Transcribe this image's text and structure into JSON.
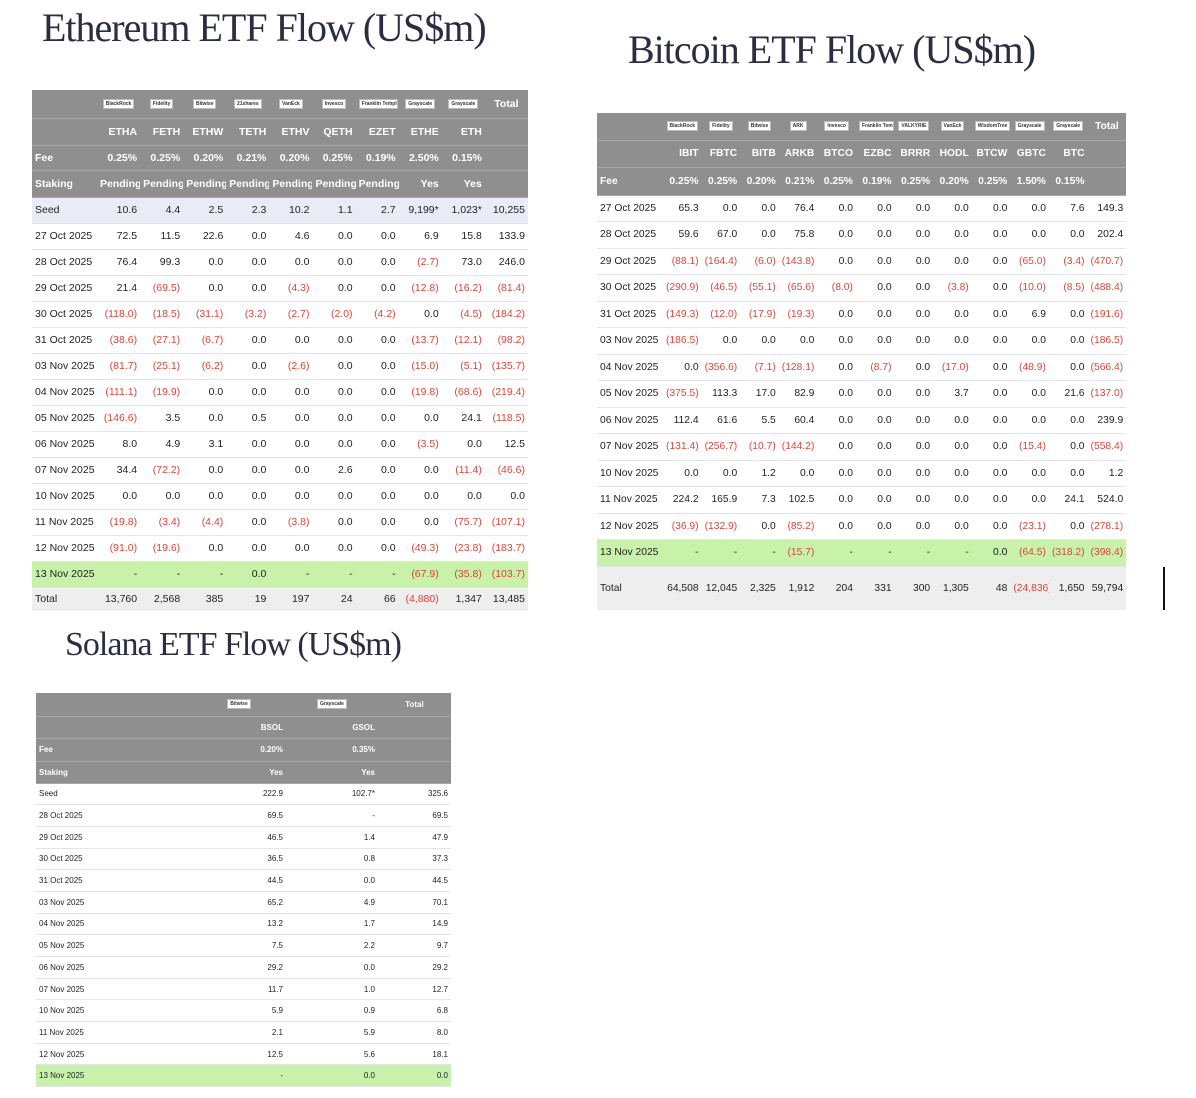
{
  "ethereum": {
    "title": "Ethereum ETF Flow (US$m)",
    "issuers": [
      "BlackRock",
      "Fidelity",
      "Bitwise",
      "21shares",
      "VanEck",
      "Invesco",
      "Franklin Templeton",
      "Grayscale",
      "Grayscale"
    ],
    "total_header": "Total",
    "tickers": [
      "ETHA",
      "FETH",
      "ETHW",
      "TETH",
      "ETHV",
      "QETH",
      "EZET",
      "ETHE",
      "ETH"
    ],
    "header_rows": [
      [
        "Fee",
        "0.25%",
        "0.25%",
        "0.20%",
        "0.21%",
        "0.20%",
        "0.25%",
        "0.19%",
        "2.50%",
        "0.15%"
      ],
      [
        "Staking",
        "Pending",
        "Pending",
        "Pending",
        "Pending",
        "Pending",
        "Pending",
        "Pending",
        "Yes",
        "Yes"
      ]
    ],
    "rows": [
      [
        "Seed",
        "10.6",
        "4.4",
        "2.5",
        "2.3",
        "10.2",
        "1.1",
        "2.7",
        "9,199*",
        "1,023*",
        "10,255"
      ],
      [
        "27 Oct 2025",
        "72.5",
        "11.5",
        "22.6",
        "0.0",
        "4.6",
        "0.0",
        "0.0",
        "6.9",
        "15.8",
        "133.9"
      ],
      [
        "28 Oct 2025",
        "76.4",
        "99.3",
        "0.0",
        "0.0",
        "0.0",
        "0.0",
        "0.0",
        "(2.7)",
        "73.0",
        "246.0"
      ],
      [
        "29 Oct 2025",
        "21.4",
        "(69.5)",
        "0.0",
        "0.0",
        "(4.3)",
        "0.0",
        "0.0",
        "(12.8)",
        "(16.2)",
        "(81.4)"
      ],
      [
        "30 Oct 2025",
        "(118.0)",
        "(18.5)",
        "(31.1)",
        "(3.2)",
        "(2.7)",
        "(2.0)",
        "(4.2)",
        "0.0",
        "(4.5)",
        "(184.2)"
      ],
      [
        "31 Oct 2025",
        "(38.6)",
        "(27.1)",
        "(6.7)",
        "0.0",
        "0.0",
        "0.0",
        "0.0",
        "(13.7)",
        "(12.1)",
        "(98.2)"
      ],
      [
        "03 Nov 2025",
        "(81.7)",
        "(25.1)",
        "(6.2)",
        "0.0",
        "(2.6)",
        "0.0",
        "0.0",
        "(15.0)",
        "(5.1)",
        "(135.7)"
      ],
      [
        "04 Nov 2025",
        "(111.1)",
        "(19.9)",
        "0.0",
        "0.0",
        "0.0",
        "0.0",
        "0.0",
        "(19.8)",
        "(68.6)",
        "(219.4)"
      ],
      [
        "05 Nov 2025",
        "(146.6)",
        "3.5",
        "0.0",
        "0.5",
        "0.0",
        "0.0",
        "0.0",
        "0.0",
        "24.1",
        "(118.5)"
      ],
      [
        "06 Nov 2025",
        "8.0",
        "4.9",
        "3.1",
        "0.0",
        "0.0",
        "0.0",
        "0.0",
        "(3.5)",
        "0.0",
        "12.5"
      ],
      [
        "07 Nov 2025",
        "34.4",
        "(72.2)",
        "0.0",
        "0.0",
        "0.0",
        "2.6",
        "0.0",
        "0.0",
        "(11.4)",
        "(46.6)"
      ],
      [
        "10 Nov 2025",
        "0.0",
        "0.0",
        "0.0",
        "0.0",
        "0.0",
        "0.0",
        "0.0",
        "0.0",
        "0.0",
        "0.0"
      ],
      [
        "11 Nov 2025",
        "(19.8)",
        "(3.4)",
        "(4.4)",
        "0.0",
        "(3.8)",
        "0.0",
        "0.0",
        "0.0",
        "(75.7)",
        "(107.1)"
      ],
      [
        "12 Nov 2025",
        "(91.0)",
        "(19.6)",
        "0.0",
        "0.0",
        "0.0",
        "0.0",
        "0.0",
        "(49.3)",
        "(23.8)",
        "(183.7)"
      ],
      [
        "13 Nov 2025",
        "-",
        "-",
        "-",
        "0.0",
        "-",
        "-",
        "-",
        "(67.9)",
        "(35.8)",
        "(103.7)"
      ]
    ],
    "total": [
      "Total",
      "13,760",
      "2,568",
      "385",
      "19",
      "197",
      "24",
      "66",
      "(4,880)",
      "1,347",
      "13,485"
    ]
  },
  "bitcoin": {
    "title": "Bitcoin ETF Flow (US$m)",
    "issuers": [
      "BlackRock",
      "Fidelity",
      "Bitwise",
      "ARK",
      "Invesco",
      "Franklin Templeton",
      "VALKYRIE",
      "VanEck",
      "WisdomTree",
      "Grayscale",
      "Grayscale"
    ],
    "total_header": "Total",
    "tickers": [
      "IBIT",
      "FBTC",
      "BITB",
      "ARKB",
      "BTCO",
      "EZBC",
      "BRRR",
      "HODL",
      "BTCW",
      "GBTC",
      "BTC"
    ],
    "header_rows": [
      [
        "Fee",
        "0.25%",
        "0.25%",
        "0.20%",
        "0.21%",
        "0.25%",
        "0.19%",
        "0.25%",
        "0.20%",
        "0.25%",
        "1.50%",
        "0.15%"
      ]
    ],
    "rows": [
      [
        "27 Oct 2025",
        "65.3",
        "0.0",
        "0.0",
        "76.4",
        "0.0",
        "0.0",
        "0.0",
        "0.0",
        "0.0",
        "0.0",
        "7.6",
        "149.3"
      ],
      [
        "28 Oct 2025",
        "59.6",
        "67.0",
        "0.0",
        "75.8",
        "0.0",
        "0.0",
        "0.0",
        "0.0",
        "0.0",
        "0.0",
        "0.0",
        "202.4"
      ],
      [
        "29 Oct 2025",
        "(88.1)",
        "(164.4)",
        "(6.0)",
        "(143.8)",
        "0.0",
        "0.0",
        "0.0",
        "0.0",
        "0.0",
        "(65.0)",
        "(3.4)",
        "(470.7)"
      ],
      [
        "30 Oct 2025",
        "(290.9)",
        "(46.5)",
        "(55.1)",
        "(65.6)",
        "(8.0)",
        "0.0",
        "0.0",
        "(3.8)",
        "0.0",
        "(10.0)",
        "(8.5)",
        "(488.4)"
      ],
      [
        "31 Oct 2025",
        "(149.3)",
        "(12.0)",
        "(17.9)",
        "(19.3)",
        "0.0",
        "0.0",
        "0.0",
        "0.0",
        "0.0",
        "6.9",
        "0.0",
        "(191.6)"
      ],
      [
        "03 Nov 2025",
        "(186.5)",
        "0.0",
        "0.0",
        "0.0",
        "0.0",
        "0.0",
        "0.0",
        "0.0",
        "0.0",
        "0.0",
        "0.0",
        "(186.5)"
      ],
      [
        "04 Nov 2025",
        "0.0",
        "(356.6)",
        "(7.1)",
        "(128.1)",
        "0.0",
        "(8.7)",
        "0.0",
        "(17.0)",
        "0.0",
        "(48.9)",
        "0.0",
        "(566.4)"
      ],
      [
        "05 Nov 2025",
        "(375.5)",
        "113.3",
        "17.0",
        "82.9",
        "0.0",
        "0.0",
        "0.0",
        "3.7",
        "0.0",
        "0.0",
        "21.6",
        "(137.0)"
      ],
      [
        "06 Nov 2025",
        "112.4",
        "61.6",
        "5.5",
        "60.4",
        "0.0",
        "0.0",
        "0.0",
        "0.0",
        "0.0",
        "0.0",
        "0.0",
        "239.9"
      ],
      [
        "07 Nov 2025",
        "(131.4)",
        "(256.7)",
        "(10.7)",
        "(144.2)",
        "0.0",
        "0.0",
        "0.0",
        "0.0",
        "0.0",
        "(15.4)",
        "0.0",
        "(558.4)"
      ],
      [
        "10 Nov 2025",
        "0.0",
        "0.0",
        "1.2",
        "0.0",
        "0.0",
        "0.0",
        "0.0",
        "0.0",
        "0.0",
        "0.0",
        "0.0",
        "1.2"
      ],
      [
        "11 Nov 2025",
        "224.2",
        "165.9",
        "7.3",
        "102.5",
        "0.0",
        "0.0",
        "0.0",
        "0.0",
        "0.0",
        "0.0",
        "24.1",
        "524.0"
      ],
      [
        "12 Nov 2025",
        "(36.9)",
        "(132.9)",
        "0.0",
        "(85.2)",
        "0.0",
        "0.0",
        "0.0",
        "0.0",
        "0.0",
        "(23.1)",
        "0.0",
        "(278.1)"
      ],
      [
        "13 Nov 2025",
        "-",
        "-",
        "-",
        "(15.7)",
        "-",
        "-",
        "-",
        "-",
        "0.0",
        "(64.5)",
        "(318.2)",
        "(398.4)"
      ]
    ],
    "total": [
      "Total",
      "64,508",
      "12,045",
      "2,325",
      "1,912",
      "204",
      "331",
      "300",
      "1,305",
      "48",
      "(24,836)",
      "1,650",
      "59,794"
    ]
  },
  "solana": {
    "title": "Solana ETF Flow (US$m)",
    "issuers": [
      "Bitwise",
      "Grayscale"
    ],
    "total_header": "Total",
    "tickers": [
      "BSOL",
      "GSOL"
    ],
    "header_rows": [
      [
        "Fee",
        "0.20%",
        "0.35%"
      ],
      [
        "Staking",
        "Yes",
        "Yes"
      ]
    ],
    "rows": [
      [
        "Seed",
        "222.9",
        "102.7*",
        "325.6"
      ],
      [
        "28 Oct 2025",
        "69.5",
        "-",
        "69.5"
      ],
      [
        "29 Oct 2025",
        "46.5",
        "1.4",
        "47.9"
      ],
      [
        "30 Oct 2025",
        "36.5",
        "0.8",
        "37.3"
      ],
      [
        "31 Oct 2025",
        "44.5",
        "0.0",
        "44.5"
      ],
      [
        "03 Nov 2025",
        "65.2",
        "4.9",
        "70.1"
      ],
      [
        "04 Nov 2025",
        "13.2",
        "1.7",
        "14.9"
      ],
      [
        "05 Nov 2025",
        "7.5",
        "2.2",
        "9.7"
      ],
      [
        "06 Nov 2025",
        "29.2",
        "0.0",
        "29.2"
      ],
      [
        "07 Nov 2025",
        "11.7",
        "1.0",
        "12.7"
      ],
      [
        "10 Nov 2025",
        "5.9",
        "0.9",
        "6.8"
      ],
      [
        "11 Nov 2025",
        "2.1",
        "5.9",
        "8.0"
      ],
      [
        "12 Nov 2025",
        "12.5",
        "5.6",
        "18.1"
      ],
      [
        "13 Nov 2025",
        "-",
        "0.0",
        "0.0"
      ]
    ]
  }
}
